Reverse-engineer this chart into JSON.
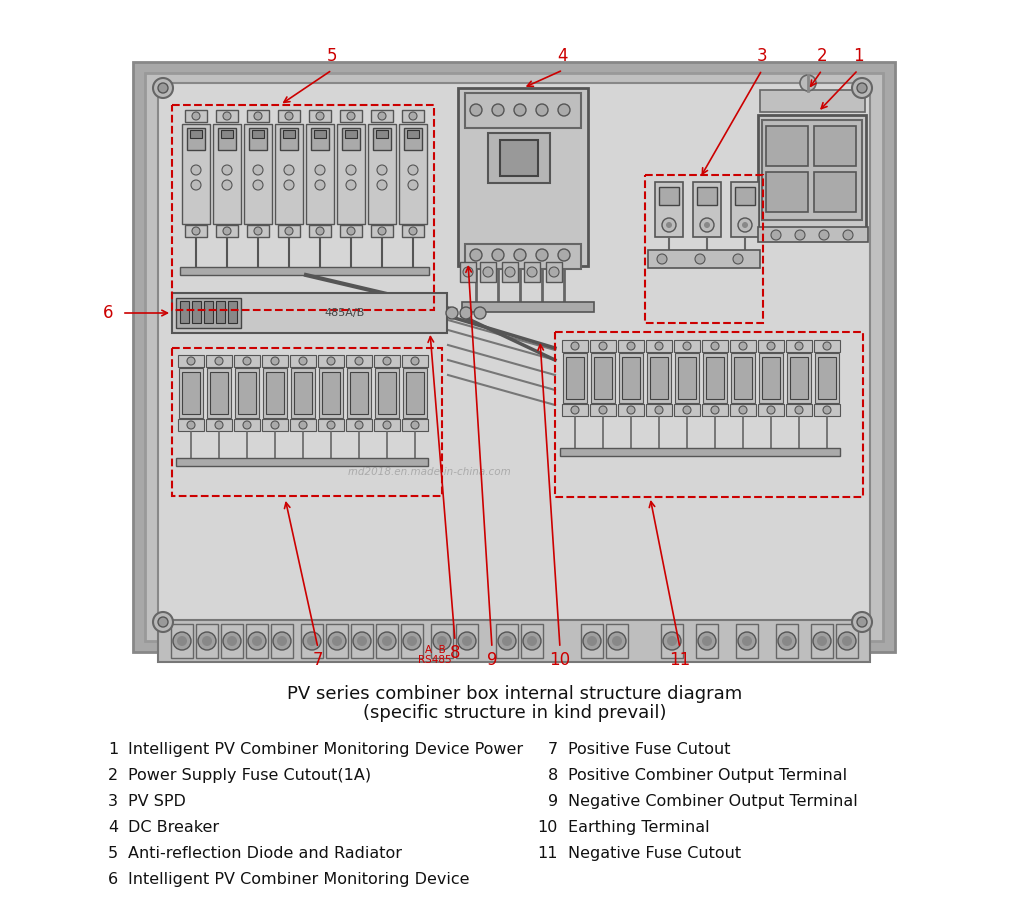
{
  "bg_color": "#f0f0f0",
  "panel_outer_fc": "#b0b0b0",
  "panel_inner_fc": "#d4d4d4",
  "panel_bg_fc": "#e8e8e8",
  "comp_fc": "#cccccc",
  "comp_dark_fc": "#aaaaaa",
  "comp_ec": "#555555",
  "red": "#cc0000",
  "dark": "#222222",
  "watermark": "rnd2018.en.made-in-china.com",
  "title_line1": "PV series combiner box internal structure diagram",
  "title_line2": "(specific structure in kind prevail)",
  "legend_left": [
    [
      "1",
      "Intelligent PV Combiner Monitoring Device Power"
    ],
    [
      "2",
      "Power Supply Fuse Cutout(1A)"
    ],
    [
      "3",
      "PV SPD"
    ],
    [
      "4",
      "DC Breaker"
    ],
    [
      "5",
      "Anti-reflection Diode and Radiator"
    ],
    [
      "6",
      "Intelligent PV Combiner Monitoring Device"
    ]
  ],
  "legend_right": [
    [
      "7",
      "Positive Fuse Cutout"
    ],
    [
      "8",
      "Positive Combiner Output Terminal"
    ],
    [
      "9",
      "Negative Combiner Output Terminal"
    ],
    [
      "10",
      "Earthing Terminal"
    ],
    [
      "11",
      "Negative Fuse Cutout"
    ]
  ]
}
